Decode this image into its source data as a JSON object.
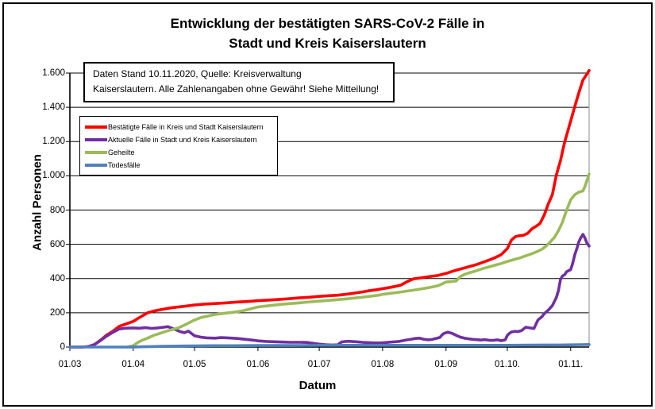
{
  "title": {
    "line1": "Entwicklung der bestätigten SARS-CoV-2 Fälle in",
    "line2": "Stadt und Kreis Kaiserslautern"
  },
  "chart_data": {
    "type": "line",
    "title": "Entwicklung der bestätigten SARS-CoV-2 Fälle in Stadt und Kreis Kaiserslautern",
    "xlabel": "Datum",
    "ylabel": "Anzahl Personen",
    "ylim": [
      0,
      1600
    ],
    "grid": "horizontal-only",
    "legend_position": "inside-upper-left",
    "annotation_lines": [
      "Daten Stand 10.11.2020, Quelle: Kreisverwaltung",
      "Kaiserslautern. Alle Zahlenangaben ohne Gewähr! Siehe Mitteilung!"
    ],
    "y_ticks": {
      "values": [
        0,
        200,
        400,
        600,
        800,
        1000,
        1200,
        1400,
        1600
      ],
      "labels": [
        "0",
        "200",
        "400",
        "600",
        "800",
        "1.000",
        "1.200",
        "1.400",
        "1.600"
      ]
    },
    "x_axis": {
      "start_date": "01.03.2020",
      "end_date": "10.11.2020",
      "total_days": 254,
      "tick_days": [
        0,
        31,
        61,
        92,
        122,
        153,
        184,
        214,
        245
      ],
      "tick_labels": [
        "01.03",
        "01.04",
        "01.05",
        "01.06",
        "01.07",
        "01.08",
        "01.09",
        "01.10.",
        "01.11."
      ]
    },
    "series": [
      {
        "name": "Bestätigte Fälle in Kreis und Stadt Kaiserslautern",
        "color": "#FF0000",
        "points": [
          [
            0,
            0
          ],
          [
            6,
            0
          ],
          [
            9,
            3
          ],
          [
            12,
            15
          ],
          [
            15,
            40
          ],
          [
            18,
            70
          ],
          [
            21,
            92
          ],
          [
            24,
            120
          ],
          [
            27,
            133
          ],
          [
            31,
            150
          ],
          [
            34,
            172
          ],
          [
            38,
            200
          ],
          [
            41,
            210
          ],
          [
            45,
            220
          ],
          [
            49,
            228
          ],
          [
            52,
            233
          ],
          [
            56,
            238
          ],
          [
            61,
            246
          ],
          [
            66,
            251
          ],
          [
            71,
            254
          ],
          [
            76,
            258
          ],
          [
            82,
            263
          ],
          [
            88,
            267
          ],
          [
            92,
            271
          ],
          [
            97,
            274
          ],
          [
            102,
            278
          ],
          [
            107,
            282
          ],
          [
            112,
            287
          ],
          [
            117,
            291
          ],
          [
            122,
            296
          ],
          [
            127,
            300
          ],
          [
            131,
            303
          ],
          [
            135,
            308
          ],
          [
            139,
            315
          ],
          [
            143,
            322
          ],
          [
            147,
            330
          ],
          [
            150,
            335
          ],
          [
            153,
            341
          ],
          [
            156,
            347
          ],
          [
            159,
            354
          ],
          [
            162,
            362
          ],
          [
            165,
            382
          ],
          [
            168,
            398
          ],
          [
            171,
            403
          ],
          [
            174,
            408
          ],
          [
            177,
            413
          ],
          [
            180,
            418
          ],
          [
            184,
            430
          ],
          [
            187,
            442
          ],
          [
            190,
            452
          ],
          [
            193,
            462
          ],
          [
            196,
            472
          ],
          [
            199,
            482
          ],
          [
            202,
            495
          ],
          [
            205,
            508
          ],
          [
            208,
            522
          ],
          [
            211,
            540
          ],
          [
            214,
            575
          ],
          [
            216,
            625
          ],
          [
            218,
            645
          ],
          [
            220,
            650
          ],
          [
            222,
            653
          ],
          [
            224,
            665
          ],
          [
            226,
            690
          ],
          [
            228,
            705
          ],
          [
            230,
            722
          ],
          [
            232,
            770
          ],
          [
            234,
            835
          ],
          [
            236,
            890
          ],
          [
            238,
            1005
          ],
          [
            240,
            1090
          ],
          [
            242,
            1195
          ],
          [
            245,
            1320
          ],
          [
            247,
            1405
          ],
          [
            249,
            1485
          ],
          [
            251,
            1560
          ],
          [
            253,
            1595
          ],
          [
            254,
            1615
          ]
        ]
      },
      {
        "name": "Aktuelle Fälle in Stadt und Kreis Kaiserslautern",
        "color": "#7030A0",
        "points": [
          [
            0,
            0
          ],
          [
            6,
            0
          ],
          [
            9,
            3
          ],
          [
            12,
            14
          ],
          [
            15,
            38
          ],
          [
            18,
            64
          ],
          [
            21,
            86
          ],
          [
            24,
            105
          ],
          [
            27,
            110
          ],
          [
            31,
            112
          ],
          [
            34,
            110
          ],
          [
            37,
            113
          ],
          [
            40,
            109
          ],
          [
            43,
            112
          ],
          [
            46,
            116
          ],
          [
            48,
            119
          ],
          [
            50,
            110
          ],
          [
            52,
            100
          ],
          [
            54,
            90
          ],
          [
            56,
            84
          ],
          [
            58,
            93
          ],
          [
            61,
            66
          ],
          [
            64,
            58
          ],
          [
            67,
            54
          ],
          [
            71,
            52
          ],
          [
            74,
            55
          ],
          [
            78,
            53
          ],
          [
            82,
            50
          ],
          [
            86,
            45
          ],
          [
            90,
            40
          ],
          [
            92,
            36
          ],
          [
            96,
            33
          ],
          [
            100,
            31
          ],
          [
            104,
            29
          ],
          [
            108,
            28
          ],
          [
            112,
            28
          ],
          [
            116,
            27
          ],
          [
            120,
            20
          ],
          [
            122,
            17
          ],
          [
            125,
            14
          ],
          [
            128,
            12
          ],
          [
            131,
            13
          ],
          [
            133,
            30
          ],
          [
            136,
            34
          ],
          [
            140,
            31
          ],
          [
            143,
            28
          ],
          [
            146,
            26
          ],
          [
            149,
            24
          ],
          [
            152,
            24
          ],
          [
            155,
            27
          ],
          [
            158,
            30
          ],
          [
            161,
            33
          ],
          [
            164,
            40
          ],
          [
            167,
            46
          ],
          [
            169,
            50
          ],
          [
            171,
            52
          ],
          [
            173,
            46
          ],
          [
            175,
            42
          ],
          [
            177,
            44
          ],
          [
            179,
            50
          ],
          [
            181,
            56
          ],
          [
            182,
            70
          ],
          [
            183,
            80
          ],
          [
            185,
            87
          ],
          [
            187,
            80
          ],
          [
            189,
            68
          ],
          [
            191,
            58
          ],
          [
            193,
            52
          ],
          [
            195,
            48
          ],
          [
            197,
            45
          ],
          [
            199,
            43
          ],
          [
            201,
            41
          ],
          [
            203,
            43
          ],
          [
            205,
            40
          ],
          [
            207,
            39
          ],
          [
            209,
            42
          ],
          [
            211,
            37
          ],
          [
            213,
            42
          ],
          [
            214,
            68
          ],
          [
            215,
            80
          ],
          [
            216,
            88
          ],
          [
            218,
            92
          ],
          [
            219,
            90
          ],
          [
            221,
            96
          ],
          [
            223,
            116
          ],
          [
            225,
            112
          ],
          [
            227,
            108
          ],
          [
            229,
            158
          ],
          [
            231,
            178
          ],
          [
            232,
            195
          ],
          [
            234,
            215
          ],
          [
            236,
            242
          ],
          [
            238,
            290
          ],
          [
            239,
            330
          ],
          [
            240,
            395
          ],
          [
            241,
            415
          ],
          [
            242,
            422
          ],
          [
            243,
            440
          ],
          [
            245,
            452
          ],
          [
            246,
            490
          ],
          [
            247,
            540
          ],
          [
            248,
            575
          ],
          [
            249,
            615
          ],
          [
            250,
            640
          ],
          [
            251,
            658
          ],
          [
            252,
            635
          ],
          [
            253,
            605
          ],
          [
            254,
            590
          ]
        ]
      },
      {
        "name": "Geheilte",
        "color": "#9BBB59",
        "points": [
          [
            28,
            0
          ],
          [
            31,
            8
          ],
          [
            33,
            25
          ],
          [
            35,
            38
          ],
          [
            38,
            52
          ],
          [
            41,
            68
          ],
          [
            44,
            80
          ],
          [
            47,
            92
          ],
          [
            50,
            102
          ],
          [
            53,
            112
          ],
          [
            56,
            128
          ],
          [
            58,
            140
          ],
          [
            61,
            158
          ],
          [
            64,
            172
          ],
          [
            67,
            180
          ],
          [
            71,
            190
          ],
          [
            76,
            198
          ],
          [
            80,
            203
          ],
          [
            84,
            210
          ],
          [
            88,
            222
          ],
          [
            92,
            234
          ],
          [
            96,
            240
          ],
          [
            100,
            245
          ],
          [
            104,
            250
          ],
          [
            108,
            254
          ],
          [
            112,
            258
          ],
          [
            116,
            262
          ],
          [
            120,
            266
          ],
          [
            124,
            270
          ],
          [
            128,
            274
          ],
          [
            132,
            278
          ],
          [
            136,
            282
          ],
          [
            140,
            287
          ],
          [
            144,
            292
          ],
          [
            148,
            298
          ],
          [
            151,
            303
          ],
          [
            153,
            308
          ],
          [
            157,
            314
          ],
          [
            161,
            320
          ],
          [
            165,
            327
          ],
          [
            169,
            334
          ],
          [
            173,
            342
          ],
          [
            177,
            350
          ],
          [
            180,
            358
          ],
          [
            182,
            368
          ],
          [
            184,
            380
          ],
          [
            187,
            383
          ],
          [
            189,
            386
          ],
          [
            191,
            412
          ],
          [
            193,
            424
          ],
          [
            196,
            436
          ],
          [
            199,
            446
          ],
          [
            202,
            458
          ],
          [
            205,
            468
          ],
          [
            208,
            478
          ],
          [
            211,
            488
          ],
          [
            214,
            500
          ],
          [
            217,
            510
          ],
          [
            220,
            520
          ],
          [
            223,
            533
          ],
          [
            226,
            545
          ],
          [
            229,
            560
          ],
          [
            231,
            572
          ],
          [
            233,
            590
          ],
          [
            235,
            614
          ],
          [
            237,
            640
          ],
          [
            239,
            680
          ],
          [
            241,
            730
          ],
          [
            243,
            800
          ],
          [
            245,
            860
          ],
          [
            247,
            890
          ],
          [
            249,
            905
          ],
          [
            251,
            912
          ],
          [
            252,
            940
          ],
          [
            254,
            1010
          ]
        ]
      },
      {
        "name": "Todesfälle",
        "color": "#4F81BD",
        "points": [
          [
            0,
            0
          ],
          [
            30,
            0
          ],
          [
            33,
            1
          ],
          [
            36,
            2
          ],
          [
            40,
            3
          ],
          [
            45,
            4
          ],
          [
            50,
            5
          ],
          [
            55,
            6
          ],
          [
            61,
            7
          ],
          [
            70,
            8
          ],
          [
            80,
            8
          ],
          [
            92,
            9
          ],
          [
            110,
            9
          ],
          [
            122,
            10
          ],
          [
            140,
            10
          ],
          [
            153,
            10
          ],
          [
            170,
            10
          ],
          [
            184,
            10
          ],
          [
            200,
            10
          ],
          [
            214,
            10
          ],
          [
            225,
            11
          ],
          [
            235,
            12
          ],
          [
            240,
            12
          ],
          [
            245,
            13
          ],
          [
            250,
            14
          ],
          [
            254,
            15
          ]
        ]
      }
    ],
    "plot_style": {
      "gridline_color": "#000000",
      "right_border_color": "#A6A6A6",
      "line_width": 3.6
    }
  }
}
